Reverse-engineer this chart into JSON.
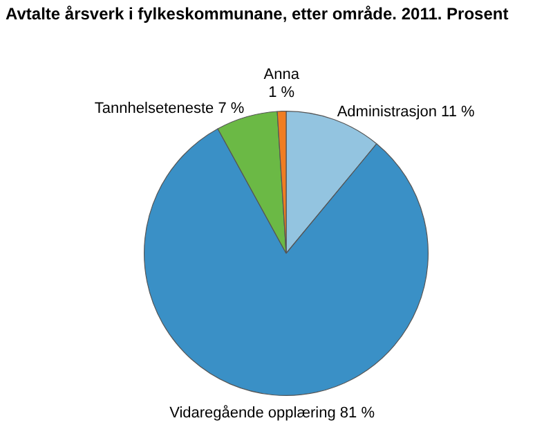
{
  "chart_data": {
    "type": "pie",
    "title": "Avtalte årsverk i fylkeskommunane, etter område. 2011. Prosent",
    "categories": [
      "Administrasjon",
      "Vidaregående opplæring",
      "Tannhelseteneste",
      "Anna"
    ],
    "values": [
      11,
      81,
      7,
      1
    ],
    "colors": [
      "#93c4e0",
      "#3a90c6",
      "#6bb945",
      "#f07d22"
    ],
    "value_labels": [
      "11 %",
      "81 %",
      "7 %",
      "1 %"
    ],
    "legend": false
  }
}
